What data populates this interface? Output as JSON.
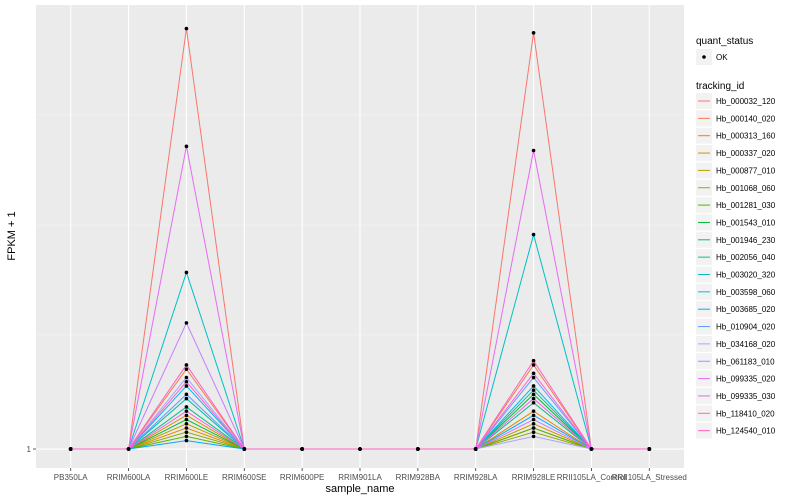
{
  "chart_data": {
    "type": "line",
    "xlabel": "sample_name",
    "ylabel": "FPKM + 1",
    "categories": [
      "PB350LA",
      "RRIM600LA",
      "RRIM600LE",
      "RRIM600SE",
      "RRIM600PE",
      "RRIM901LA",
      "RRIM928BA",
      "RRIM928LA",
      "RRIM928LE",
      "RRII105LA_Control",
      "RRII105LA_Stressed"
    ],
    "y_ticks": [
      {
        "value": 1,
        "label": "1"
      }
    ],
    "ylim": [
      0.05,
      1.05
    ],
    "grid": true,
    "legend_position": "right",
    "legend_shape_title": "quant_status",
    "legend_shape_entries": [
      "OK"
    ],
    "legend_color_title": "tracking_id",
    "series": [
      {
        "name": "Hb_000032_120",
        "color": "#F8766D",
        "values": [
          0,
          0,
          1.0,
          0,
          0,
          0,
          0,
          0,
          0.99,
          0,
          0
        ]
      },
      {
        "name": "Hb_000140_020",
        "color": "#F17E4E",
        "values": [
          0,
          0,
          0.19,
          0,
          0,
          0,
          0,
          0,
          0.2,
          0,
          0
        ]
      },
      {
        "name": "Hb_000313_160",
        "color": "#E58700",
        "values": [
          0,
          0,
          0.05,
          0,
          0,
          0,
          0,
          0,
          0.09,
          0,
          0
        ]
      },
      {
        "name": "Hb_000337_020",
        "color": "#D49200",
        "values": [
          0,
          0,
          0.08,
          0,
          0,
          0,
          0,
          0,
          0.06,
          0,
          0
        ]
      },
      {
        "name": "Hb_000877_010",
        "color": "#B79F00",
        "values": [
          0,
          0,
          0.06,
          0,
          0,
          0,
          0,
          0,
          0.05,
          0,
          0
        ]
      },
      {
        "name": "Hb_001068_060",
        "color": "#93AA00",
        "values": [
          0,
          0,
          0.04,
          0,
          0,
          0,
          0,
          0,
          0.04,
          0,
          0
        ]
      },
      {
        "name": "Hb_001281_030",
        "color": "#5BB300",
        "values": [
          0,
          0,
          0.03,
          0,
          0,
          0,
          0,
          0,
          0.05,
          0,
          0
        ]
      },
      {
        "name": "Hb_001543_010",
        "color": "#00BA38",
        "values": [
          0,
          0,
          0.07,
          0,
          0,
          0,
          0,
          0,
          0.13,
          0,
          0
        ]
      },
      {
        "name": "Hb_001946_230",
        "color": "#00BF7D",
        "values": [
          0,
          0,
          0.1,
          0,
          0,
          0,
          0,
          0,
          0.11,
          0,
          0
        ]
      },
      {
        "name": "Hb_002056_040",
        "color": "#00C19F",
        "values": [
          0,
          0,
          0.12,
          0,
          0,
          0,
          0,
          0,
          0.14,
          0,
          0
        ]
      },
      {
        "name": "Hb_003020_320",
        "color": "#00BFC4",
        "values": [
          0,
          0,
          0.42,
          0,
          0,
          0,
          0,
          0,
          0.51,
          0,
          0
        ]
      },
      {
        "name": "Hb_003598_060",
        "color": "#00B8E7",
        "values": [
          0,
          0,
          0.15,
          0,
          0,
          0,
          0,
          0,
          0.15,
          0,
          0
        ]
      },
      {
        "name": "Hb_003685_020",
        "color": "#00A9FF",
        "values": [
          0,
          0,
          0.02,
          0,
          0,
          0,
          0,
          0,
          0.08,
          0,
          0
        ]
      },
      {
        "name": "Hb_010904_020",
        "color": "#619CFF",
        "values": [
          0,
          0,
          0.13,
          0,
          0,
          0,
          0,
          0,
          0.17,
          0,
          0
        ]
      },
      {
        "name": "Hb_034168_020",
        "color": "#ABA3FF",
        "values": [
          0,
          0,
          0.17,
          0,
          0,
          0,
          0,
          0,
          0.03,
          0,
          0
        ]
      },
      {
        "name": "Hb_061183_010",
        "color": "#C77CFF",
        "values": [
          0,
          0,
          0.3,
          0,
          0,
          0,
          0,
          0,
          0.07,
          0,
          0
        ]
      },
      {
        "name": "Hb_099335_020",
        "color": "#E76BF3",
        "values": [
          0,
          0,
          0.72,
          0,
          0,
          0,
          0,
          0,
          0.71,
          0,
          0
        ]
      },
      {
        "name": "Hb_099335_030",
        "color": "#F365E6",
        "values": [
          0,
          0,
          0.09,
          0,
          0,
          0,
          0,
          0,
          0.12,
          0,
          0
        ]
      },
      {
        "name": "Hb_118410_020",
        "color": "#FA62DB",
        "values": [
          0,
          0,
          0.16,
          0,
          0,
          0,
          0,
          0,
          0.18,
          0,
          0
        ]
      },
      {
        "name": "Hb_124540_010",
        "color": "#FF61C3",
        "values": [
          0,
          0,
          0.2,
          0,
          0,
          0,
          0,
          0,
          0.21,
          0,
          0
        ]
      }
    ]
  }
}
